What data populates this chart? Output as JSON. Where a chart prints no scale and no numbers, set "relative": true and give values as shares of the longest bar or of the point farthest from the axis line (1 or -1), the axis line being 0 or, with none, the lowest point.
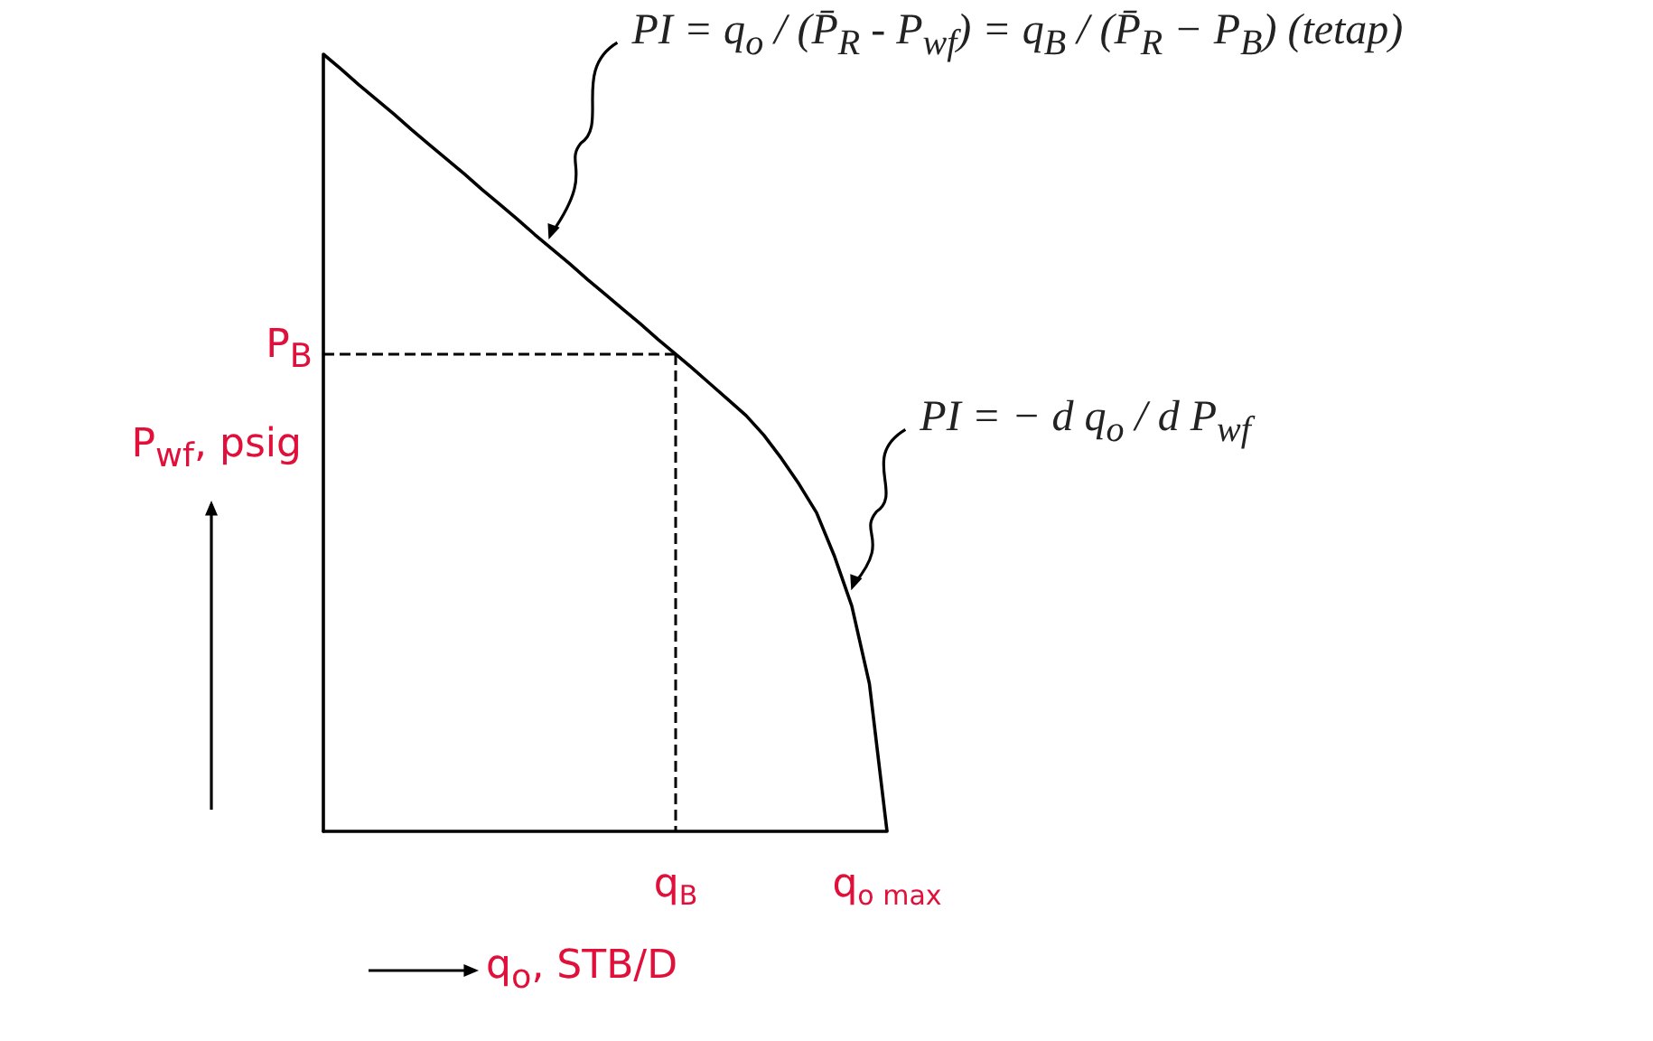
{
  "chart_data": {
    "type": "line",
    "relative": true,
    "color": "#000000",
    "xlabel": "q$_{o}$, STB/D",
    "ylabel": "P$_{wf}$, psig",
    "marker": "none",
    "line_style": "solid",
    "grid": false,
    "categories": [
      null,
      null,
      null,
      null,
      null,
      null,
      null,
      null,
      null,
      null,
      null,
      null,
      null,
      null,
      null,
      null,
      null,
      null,
      null,
      null,
      "q$_{B}$",
      null,
      null,
      null,
      null,
      null,
      null,
      null,
      null,
      null,
      null,
      null,
      "q$_{o max}$"
    ],
    "values": [
      1,
      0.981,
      0.961,
      0.942,
      0.923,
      0.903,
      0.884,
      0.865,
      0.846,
      0.826,
      0.807,
      0.788,
      0.768,
      0.749,
      0.73,
      0.71,
      0.691,
      0.672,
      0.653,
      0.633,
      0.614,
      0.595,
      0.575,
      0.555,
      0.535,
      0.51,
      0.48,
      0.447,
      0.41,
      0.355,
      0.29,
      0.19,
      0
    ],
    "ref_lines": [
      {
        "axis": "y",
        "value": 0.614,
        "label": "P$_{B}$",
        "line_style": "dashed",
        "color": "#000000"
      }
    ],
    "annotations": [
      "PI = q$_{o}$ / (P̄$_{R}$ - P$_{wf}$) = q$_{B}$ / (P̄$_{R}$ − P$_{B}$)   (tetap)",
      "PI = − d q$_{o}$ / d P$_{wf}$"
    ]
  }
}
